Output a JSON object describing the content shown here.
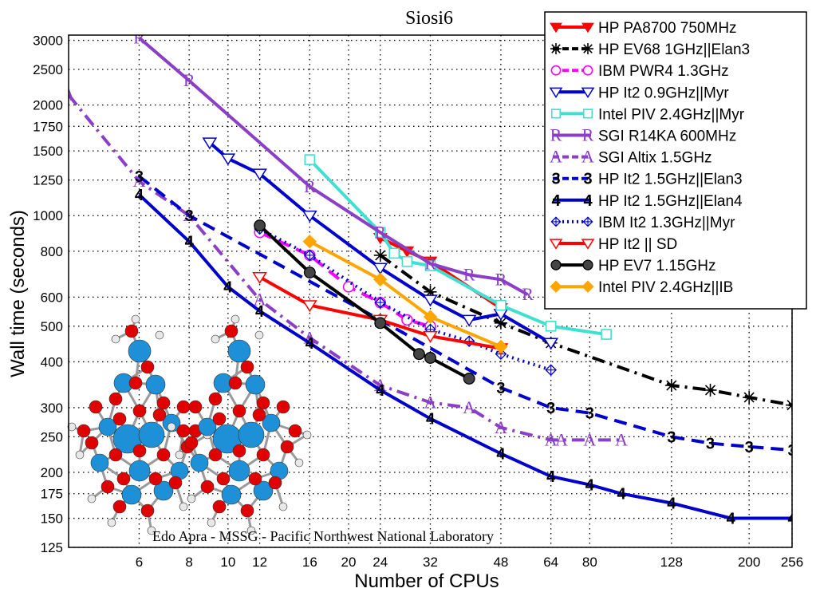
{
  "chart_data": {
    "type": "line",
    "title": "Siosi6",
    "xlabel": "Number of CPUs",
    "ylabel": "Wall time (seconds)",
    "x_scale": "log",
    "y_scale": "log",
    "xlim": [
      4,
      256
    ],
    "ylim": [
      125,
      3100
    ],
    "x_ticks": [
      6,
      8,
      10,
      12,
      16,
      20,
      24,
      32,
      48,
      64,
      80,
      128,
      200,
      256
    ],
    "y_ticks": [
      125,
      150,
      175,
      200,
      250,
      300,
      400,
      500,
      600,
      800,
      1000,
      1250,
      1500,
      1750,
      2000,
      2500,
      3000
    ],
    "grid": true,
    "legend_position": "top-right",
    "credit": "Edo Apra - MSSG - Pacific  Northwest National Laboratory",
    "series": [
      {
        "name": "HP PA8700 750MHz",
        "color": "#ff0000",
        "marker": "tri-down-filled",
        "dash": "solid",
        "x": [
          24,
          28,
          32,
          48
        ],
        "y": [
          870,
          800,
          750,
          560
        ]
      },
      {
        "name": "HP EV68 1GHz||Elan3",
        "color": "#000000",
        "marker": "asterisk",
        "dash": "dash-dot",
        "x": [
          24,
          32,
          48,
          64,
          128,
          160,
          200,
          256
        ],
        "y": [
          780,
          620,
          510,
          450,
          345,
          335,
          320,
          305
        ]
      },
      {
        "name": "IBM PWR4 1.3GHz",
        "color": "#ff00ff",
        "marker": "circle-open",
        "dash": "dash",
        "x": [
          12,
          16,
          20,
          24,
          28,
          32
        ],
        "y": [
          900,
          780,
          640,
          580,
          520,
          500
        ]
      },
      {
        "name": "HP It2 0.9GHz||Myr",
        "color": "#0000cc",
        "marker": "tri-down-open",
        "dash": "solid",
        "x": [
          9,
          10,
          12,
          16,
          24,
          32,
          40,
          48,
          64
        ],
        "y": [
          1580,
          1430,
          1300,
          1000,
          720,
          590,
          520,
          540,
          450
        ]
      },
      {
        "name": "Intel PIV 2.4GHz||Myr",
        "color": "#40e0d0",
        "marker": "square-open",
        "dash": "solid",
        "x": [
          16,
          24,
          26,
          28,
          32,
          48,
          64,
          88
        ],
        "y": [
          1420,
          900,
          790,
          750,
          730,
          570,
          500,
          475
        ]
      },
      {
        "name": "SGI R14KA 600MHz",
        "color": "#8b3fc6",
        "marker": "letter-R",
        "dash": "solid",
        "x": [
          6,
          8,
          16,
          24,
          32,
          40,
          48,
          56
        ],
        "y": [
          3050,
          2330,
          1200,
          900,
          740,
          690,
          670,
          610
        ]
      },
      {
        "name": "SGI Altix 1.5GHz",
        "color": "#8b3fc6",
        "marker": "letter-A",
        "dash": "dash-dot",
        "x": [
          4,
          6,
          8,
          12,
          16,
          24,
          32,
          40,
          48,
          64,
          68,
          80,
          96
        ],
        "y": [
          2130,
          1240,
          1000,
          590,
          465,
          345,
          310,
          300,
          265,
          245,
          245,
          245,
          245
        ]
      },
      {
        "name": "HP It2 1.5GHz||Elan3",
        "color": "#0000cc",
        "marker": "number-3",
        "dash": "dash",
        "x": [
          6,
          8,
          24,
          48,
          64,
          80,
          128,
          160,
          200,
          256
        ],
        "y": [
          1280,
          1000,
          520,
          340,
          300,
          290,
          250,
          240,
          235,
          230
        ]
      },
      {
        "name": "HP It2 1.5GHz||Elan4",
        "color": "#0000cc",
        "marker": "number-4",
        "dash": "solid",
        "x": [
          6,
          8,
          10,
          12,
          16,
          24,
          32,
          48,
          64,
          80,
          96,
          128,
          180,
          256
        ],
        "y": [
          1140,
          850,
          640,
          550,
          450,
          335,
          280,
          225,
          195,
          185,
          175,
          165,
          150,
          150
        ]
      },
      {
        "name": "IBM It2 1.3GHz||Myr",
        "color": "#0000cc",
        "marker": "diamond-cross",
        "dash": "dot",
        "x": [
          12,
          16,
          24,
          32,
          40,
          48,
          64
        ],
        "y": [
          920,
          780,
          580,
          490,
          455,
          420,
          380
        ]
      },
      {
        "name": "HP It2 || SD",
        "color": "#ff0000",
        "marker": "tri-down-open",
        "dash": "solid",
        "x": [
          12,
          16,
          24,
          32,
          48
        ],
        "y": [
          680,
          570,
          520,
          470,
          435
        ]
      },
      {
        "name": "HP EV7 1.15GHz",
        "color": "#000000",
        "marker": "circle-filled",
        "dash": "solid",
        "x": [
          12,
          16,
          24,
          30,
          32,
          40
        ],
        "y": [
          940,
          700,
          510,
          420,
          410,
          360
        ]
      },
      {
        "name": "Intel PIV 2.4GHz||IB",
        "color": "#ffa500",
        "marker": "diamond-filled",
        "dash": "solid",
        "x": [
          16,
          24,
          32,
          48
        ],
        "y": [
          850,
          670,
          530,
          440
        ]
      }
    ]
  }
}
